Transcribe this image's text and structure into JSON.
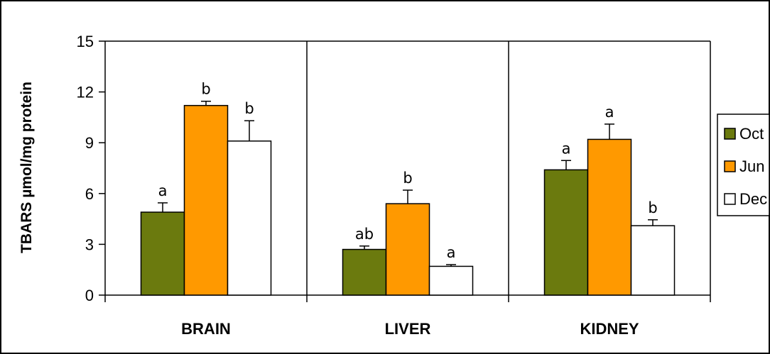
{
  "chart_data": {
    "type": "bar",
    "ylabel": "TBARS µmol/mg protein",
    "xlabel": "",
    "ylim": [
      0,
      15
    ],
    "yticks": [
      0,
      3,
      6,
      9,
      12,
      15
    ],
    "categories": [
      "BRAIN",
      "LIVER",
      "KIDNEY"
    ],
    "series": [
      {
        "name": "Oct",
        "color": "#6b7a0e",
        "values": [
          4.9,
          2.7,
          7.4
        ],
        "errors": [
          0.55,
          0.2,
          0.55
        ],
        "sig": [
          "a",
          "ab",
          "a"
        ]
      },
      {
        "name": "Jun",
        "color": "#ff9900",
        "values": [
          11.2,
          5.4,
          9.2
        ],
        "errors": [
          0.25,
          0.8,
          0.9
        ],
        "sig": [
          "b",
          "b",
          "a"
        ]
      },
      {
        "name": "Dec",
        "color": "#ffffff",
        "values": [
          9.1,
          1.7,
          4.1
        ],
        "errors": [
          1.2,
          0.1,
          0.35
        ],
        "sig": [
          "b",
          "a",
          "b"
        ]
      }
    ],
    "legend_position": "right",
    "grid": false
  }
}
